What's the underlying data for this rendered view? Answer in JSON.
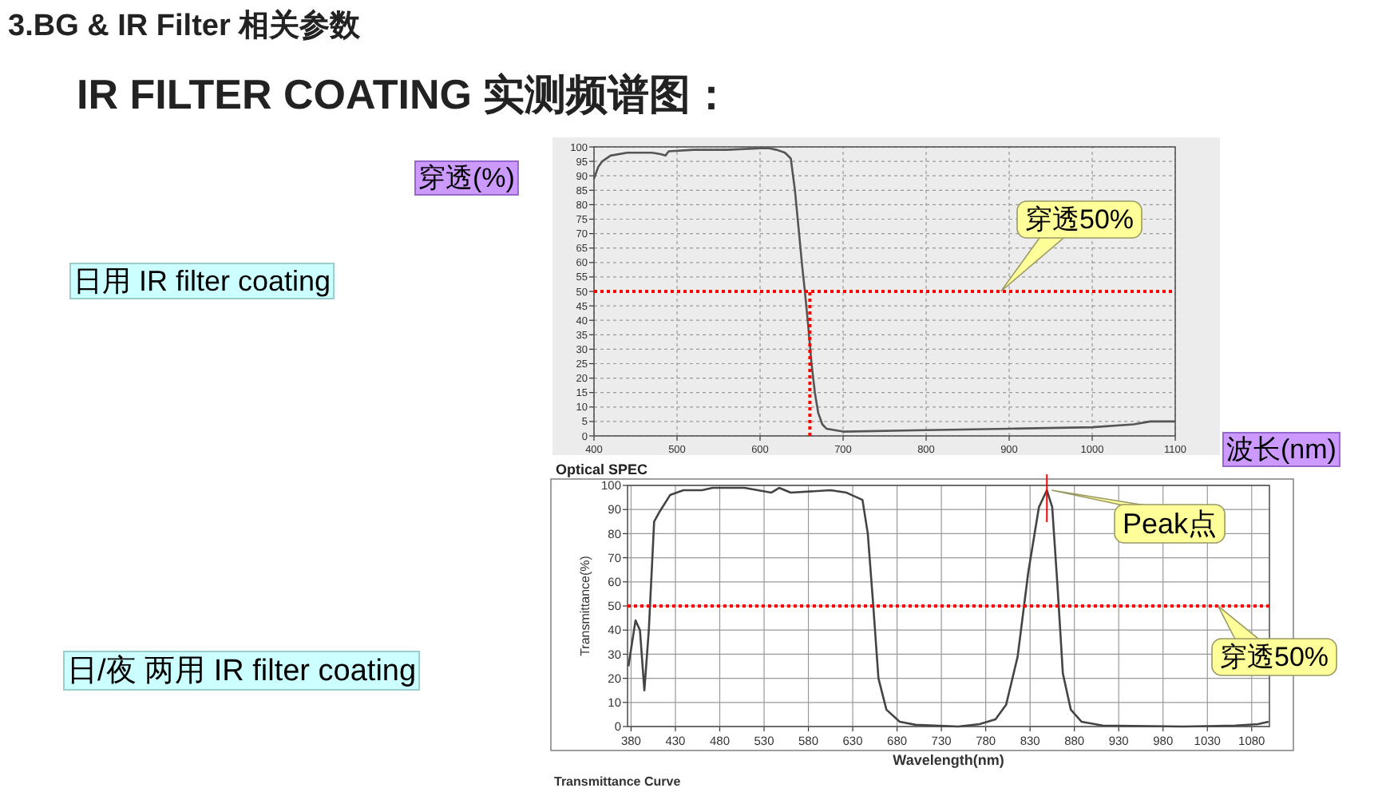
{
  "chart_data": [
    {
      "type": "line",
      "title": "IR FILTER COATING 实测频谱图：",
      "xlabel": "波长(nm)",
      "ylabel": "穿透(%)",
      "annotations": [
        "3.BG &   IR Filter 相关参数",
        "日用 IR filter coating"
      ],
      "xlim": [
        400,
        1100
      ],
      "ylim": [
        0,
        100
      ],
      "xticks": [
        400,
        500,
        600,
        700,
        800,
        900,
        1000,
        1100
      ],
      "yticks": [
        0,
        5,
        10,
        15,
        20,
        25,
        30,
        35,
        40,
        45,
        50,
        55,
        60,
        65,
        70,
        75,
        80,
        85,
        90,
        95,
        100
      ],
      "grid": true,
      "marker": "none",
      "line_style": "solid",
      "series": [
        {
          "color": "#555555",
          "x": [
            400,
            405,
            410,
            420,
            440,
            470,
            480,
            486,
            490,
            520,
            560,
            600,
            611,
            620,
            630,
            637,
            642,
            647,
            651,
            654,
            658,
            662,
            666,
            670,
            675,
            680,
            690,
            700,
            800,
            900,
            1000,
            1050,
            1070,
            1100
          ],
          "values": [
            89,
            93,
            95,
            97,
            98,
            98,
            97.5,
            97,
            98.5,
            99,
            99,
            99.5,
            99.5,
            99,
            98,
            96,
            85,
            70,
            58,
            50,
            38,
            25,
            15,
            8,
            4,
            2.5,
            2,
            1.5,
            2,
            2.5,
            3,
            4,
            5,
            5
          ]
        }
      ],
      "ref_lines": [
        {
          "axis": "y",
          "value": 50,
          "label": "穿透50%",
          "color": "#ff0000",
          "line_style": "dotted"
        },
        {
          "axis": "x",
          "value": 660,
          "color": "#ff0000",
          "line_style": "dotted"
        }
      ]
    },
    {
      "type": "line",
      "title": "Optical SPEC",
      "xlabel": "Wavelength(nm)",
      "ylabel": "Transmittance(%)",
      "annotations": [
        "Transmittance Curve",
        "日/夜 两用 IR filter coating",
        {
          "text": "Peak点",
          "x": 849,
          "y": 98
        }
      ],
      "xlim": [
        376,
        1100
      ],
      "ylim": [
        0,
        100
      ],
      "xticks": [
        380,
        430,
        480,
        530,
        580,
        630,
        680,
        730,
        780,
        830,
        880,
        930,
        980,
        1030,
        1080
      ],
      "yticks": [
        0,
        10,
        20,
        30,
        40,
        50,
        60,
        70,
        80,
        90,
        100
      ],
      "grid": true,
      "marker": "none",
      "line_style": "solid",
      "series": [
        {
          "color": "#444444",
          "x": [
            377,
            385,
            390,
            395,
            400,
            406,
            412,
            424,
            439,
            460,
            472,
            508,
            538,
            547,
            560,
            605,
            623,
            635,
            641,
            647,
            653,
            659,
            668,
            683,
            701,
            749,
            773,
            791,
            803,
            816,
            828,
            840,
            849,
            855,
            861,
            867,
            876,
            888,
            912,
            1002,
            1062,
            1087,
            1099
          ],
          "values": [
            25,
            44,
            40,
            15,
            40,
            85,
            89,
            96,
            98,
            98,
            99,
            99,
            97,
            99,
            97,
            98,
            97,
            95,
            94,
            80,
            51,
            20,
            7,
            2,
            0.7,
            0,
            1,
            3,
            9,
            29,
            64,
            91,
            98,
            91,
            58,
            22,
            7,
            2,
            0.4,
            0,
            0.4,
            1,
            2
          ]
        }
      ],
      "ref_lines": [
        {
          "axis": "y",
          "value": 50,
          "label": "穿透50%",
          "color": "#ff0000",
          "line_style": "dotted"
        }
      ]
    }
  ]
}
